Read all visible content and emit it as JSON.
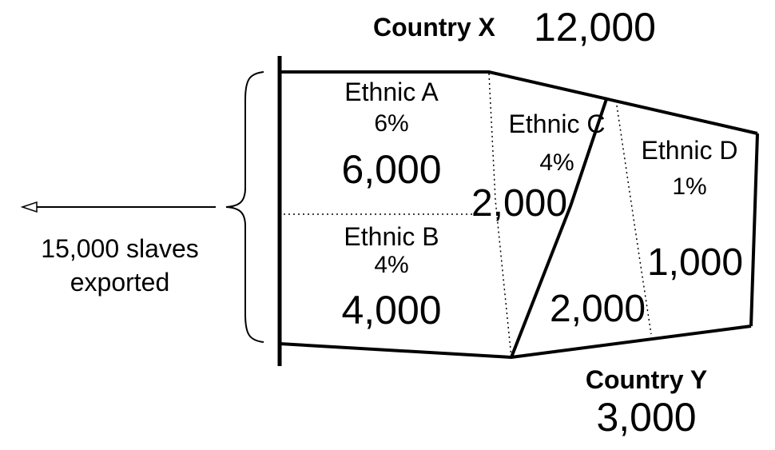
{
  "country_x": {
    "name": "Country X",
    "total": "12,000"
  },
  "country_y": {
    "name": "Country Y",
    "total": "3,000"
  },
  "ethnic_a": {
    "name": "Ethnic A",
    "pct": "6%",
    "count": "6,000"
  },
  "ethnic_b": {
    "name": "Ethnic B",
    "pct": "4%",
    "count": "4,000"
  },
  "ethnic_c": {
    "name": "Ethnic C",
    "pct": "4%",
    "count_x": "2,000",
    "count_y": "2,000"
  },
  "ethnic_d": {
    "name": "Ethnic D",
    "pct": "1%",
    "count": "1,000"
  },
  "exports": {
    "line1": "15,000 slaves",
    "line2": "exported"
  }
}
